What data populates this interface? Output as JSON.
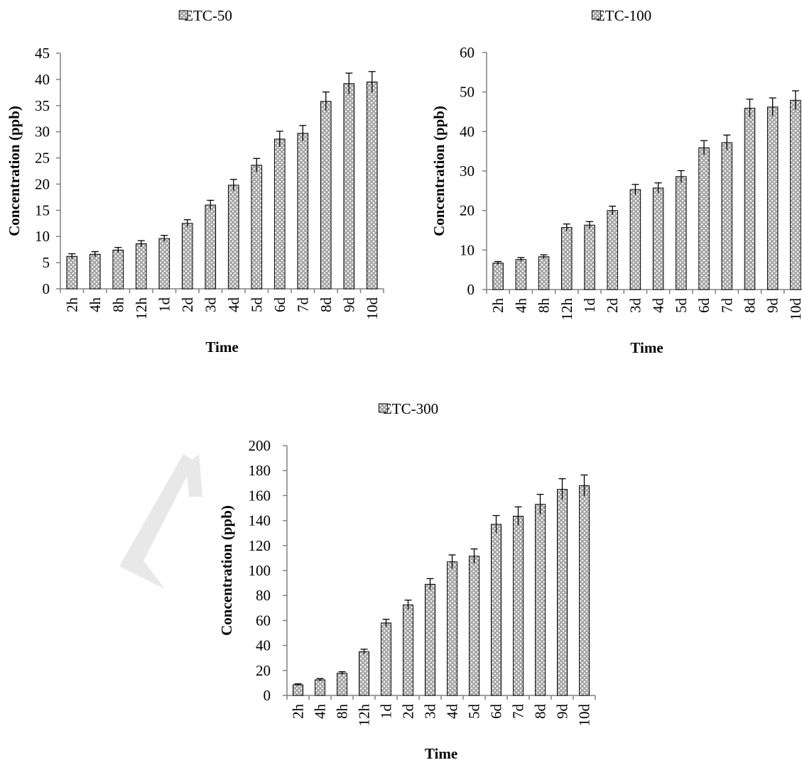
{
  "colors": {
    "bar_fill": "#a9a9a9",
    "bar_stroke": "#000000",
    "axis": "#808080",
    "pattern_dot": "#ffffff"
  },
  "chart_data": [
    {
      "type": "bar",
      "legend": "ETC-50",
      "legend_position": "top-center",
      "xlabel": "Time",
      "ylabel": "Concentration (ppb)",
      "ylim": [
        0,
        45
      ],
      "yticks": [
        0,
        5,
        10,
        15,
        20,
        25,
        30,
        35,
        40,
        45
      ],
      "grid": false,
      "categories": [
        "2h",
        "4h",
        "8h",
        "12h",
        "1d",
        "2d",
        "3d",
        "4d",
        "5d",
        "6d",
        "7d",
        "8d",
        "9d",
        "10d"
      ],
      "series": [
        {
          "name": "ETC-50",
          "values": [
            6.2,
            6.6,
            7.4,
            8.6,
            9.6,
            12.5,
            16.0,
            19.8,
            23.6,
            28.6,
            29.7,
            35.8,
            39.2,
            39.5
          ],
          "errors": [
            0.5,
            0.5,
            0.5,
            0.6,
            0.6,
            0.7,
            0.9,
            1.1,
            1.3,
            1.5,
            1.5,
            1.8,
            2.0,
            2.0
          ]
        }
      ]
    },
    {
      "type": "bar",
      "legend": "ETC-100",
      "legend_position": "top-center",
      "xlabel": "Time",
      "ylabel": "Concentration (ppb)",
      "ylim": [
        0,
        60
      ],
      "yticks": [
        0,
        10,
        20,
        30,
        40,
        50,
        60
      ],
      "grid": false,
      "categories": [
        "2h",
        "4h",
        "8h",
        "12h",
        "1d",
        "2d",
        "3d",
        "4d",
        "5d",
        "6d",
        "7d",
        "8d",
        "9d",
        "10d"
      ],
      "series": [
        {
          "name": "ETC-100",
          "values": [
            6.7,
            7.6,
            8.3,
            15.7,
            16.3,
            20.0,
            25.3,
            25.7,
            28.6,
            35.9,
            37.2,
            45.9,
            46.2,
            47.9
          ],
          "errors": [
            0.4,
            0.5,
            0.5,
            0.9,
            0.9,
            1.1,
            1.3,
            1.3,
            1.5,
            1.8,
            1.9,
            2.3,
            2.3,
            2.4
          ]
        }
      ]
    },
    {
      "type": "bar",
      "legend": "ETC-300",
      "legend_position": "top-center",
      "xlabel": "Time",
      "ylabel": "Concentration (ppb)",
      "ylim": [
        0,
        200
      ],
      "yticks": [
        0,
        20,
        40,
        60,
        80,
        100,
        120,
        140,
        160,
        180,
        200
      ],
      "grid": false,
      "categories": [
        "2h",
        "4h",
        "8h",
        "12h",
        "1d",
        "2d",
        "3d",
        "4d",
        "5d",
        "6d",
        "7d",
        "8d",
        "9d",
        "10d"
      ],
      "series": [
        {
          "name": "ETC-300",
          "values": [
            8.5,
            12.5,
            17.8,
            35.0,
            58.0,
            72.5,
            89.0,
            107.0,
            111.5,
            137.0,
            143.5,
            153.0,
            165.0,
            168.0
          ],
          "errors": [
            0.8,
            1.0,
            1.2,
            2.0,
            3.0,
            3.8,
            4.5,
            5.5,
            5.8,
            7.0,
            7.5,
            8.0,
            8.5,
            8.5
          ]
        }
      ]
    }
  ]
}
